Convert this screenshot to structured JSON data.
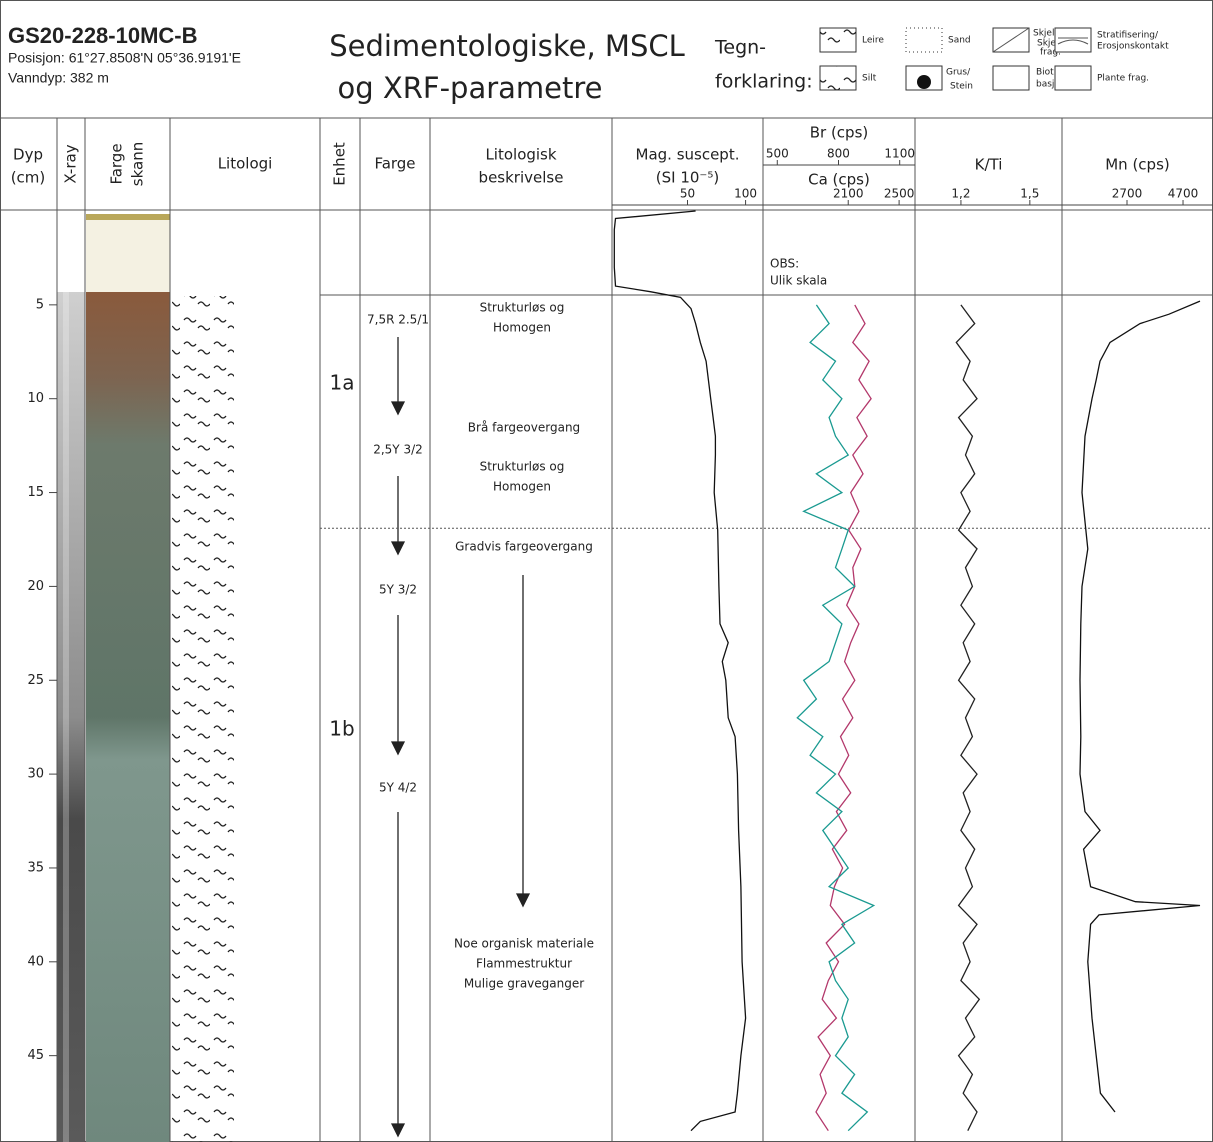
{
  "header": {
    "core": "GS20-228-10MC-B",
    "position": "Posisjon: 61°27.8508'N 05°36.9191'E",
    "water_depth": "Vanndyp: 382 m",
    "title": [
      "Sedimentologiske, MSCL",
      "og XRF-parametre"
    ]
  },
  "legend": {
    "title": [
      "Tegn-",
      "forklaring:"
    ],
    "items": [
      [
        "Leire"
      ],
      [
        "Silt"
      ],
      [
        "Sand"
      ],
      [
        "Grus/",
        "Stein"
      ],
      [
        "Skjell/",
        "Skjell",
        "frag."
      ],
      [
        "Biotur-",
        "basjon"
      ],
      [
        "Stratifisering/",
        "Erosjonskontakt"
      ],
      [
        "Plante frag."
      ]
    ]
  },
  "columns": {
    "depth": [
      "Dyp",
      "(cm)"
    ],
    "xray": "X-ray",
    "scan": [
      "Farge",
      "skann"
    ],
    "lithology": "Litologi",
    "unit": "Enhet",
    "color": "Farge",
    "description": [
      "Litologisk",
      "beskrivelse"
    ]
  },
  "units": [
    "1a",
    "1b"
  ],
  "colors": [
    "7,5R 2.5/1",
    "2,5Y 3/2",
    "5Y 3/2",
    "5Y 4/2"
  ],
  "descriptions": [
    [
      "Strukturløs og",
      "Homogen"
    ],
    [
      "Brå fargeovergang"
    ],
    [
      "Strukturløs og",
      "Homogen"
    ],
    [
      "Gradvis fargeovergang"
    ],
    [
      "Noe organisk materiale",
      "Flammestruktur",
      "Mulige graveganger"
    ]
  ],
  "chart_data": {
    "type": "depth-log",
    "ylim": [
      0,
      49.6
    ],
    "yticks": [
      5,
      10,
      15,
      20,
      25,
      30,
      35,
      40,
      45
    ],
    "unit_boundary": 16.9,
    "tracks": [
      {
        "series": [
          {
            "name": "Mag. suscept.",
            "unit": "(SI 10⁻⁵)",
            "color": "#111111",
            "xlim": [
              -15,
              115
            ],
            "xticks": [
              50,
              100
            ],
            "depth": [
              0,
              0.4,
              1,
              2,
              3,
              4,
              4.3,
              4.6,
              5.2,
              6,
              7,
              8,
              9,
              10,
              11,
              12,
              13,
              15,
              17,
              20,
              22,
              23,
              24,
              25,
              27,
              28,
              30,
              33,
              36,
              40,
              43,
              45,
              47,
              48,
              48.5,
              49
            ],
            "values": [
              57,
              -12,
              -13,
              -13,
              -13,
              -12,
              18,
              44,
              53,
              57,
              61,
              66,
              68,
              70,
              72,
              74,
              74,
              73,
              76,
              77,
              78,
              85,
              80,
              83,
              85,
              91,
              93,
              94,
              96,
              97,
              100,
              96,
              93,
              91,
              61,
              53
            ]
          }
        ]
      },
      {
        "note": [
          "OBS:",
          "Ulik skala"
        ],
        "series": [
          {
            "name": "Br (cps)",
            "color": "#b3386b",
            "xlim": [
              430,
              1175
            ],
            "xticks": [
              500,
              800,
              1100
            ],
            "depth": [
              5,
              6,
              7,
              8,
              9,
              10,
              11,
              12,
              13,
              14,
              15,
              16,
              17,
              18,
              19,
              20,
              21,
              22,
              23,
              24,
              25,
              26,
              27,
              28,
              29,
              30,
              31,
              32,
              33,
              34,
              35,
              36,
              37,
              38,
              39,
              40,
              41,
              42,
              43,
              44,
              45,
              46,
              47,
              48,
              49
            ],
            "values": [
              880,
              930,
              870,
              950,
              900,
              960,
              890,
              940,
              870,
              920,
              860,
              900,
              850,
              910,
              870,
              880,
              840,
              900,
              860,
              830,
              880,
              820,
              870,
              810,
              850,
              800,
              860,
              790,
              840,
              770,
              820,
              780,
              760,
              830,
              740,
              800,
              750,
              720,
              790,
              700,
              760,
              710,
              740,
              690,
              750
            ]
          },
          {
            "name": "Ca (cps)",
            "color": "#1a9a91",
            "xlim": [
              1430,
              2625
            ],
            "xticks": [
              2100,
              2500
            ],
            "depth": [
              5,
              6,
              7,
              8,
              9,
              10,
              11,
              12,
              13,
              14,
              15,
              16,
              17,
              18,
              19,
              20,
              21,
              22,
              23,
              24,
              25,
              26,
              27,
              28,
              29,
              30,
              31,
              32,
              33,
              34,
              35,
              36,
              37,
              38,
              39,
              40,
              41,
              42,
              43,
              44,
              45,
              46,
              47,
              48,
              49
            ],
            "values": [
              1850,
              1950,
              1800,
              2000,
              1900,
              2050,
              1950,
              2000,
              2100,
              1850,
              2050,
              1750,
              2100,
              2050,
              2000,
              2150,
              1900,
              2050,
              2000,
              1950,
              1750,
              1850,
              1700,
              1900,
              1800,
              2000,
              1850,
              2050,
              1900,
              2000,
              2100,
              1950,
              2300,
              2050,
              2150,
              1950,
              2000,
              2100,
              2050,
              2100,
              2000,
              2150,
              2050,
              2250,
              2100
            ]
          }
        ]
      },
      {
        "series": [
          {
            "name": "K/Ti",
            "color": "#222222",
            "xlim": [
              1.0,
              1.64
            ],
            "xticks": [
              {
                "value": 1.2,
                "label": "1,2"
              },
              {
                "value": 1.5,
                "label": "1,5"
              }
            ],
            "depth": [
              5,
              6,
              7,
              8,
              9,
              10,
              11,
              12,
              13,
              14,
              15,
              16,
              17,
              18,
              19,
              20,
              21,
              22,
              23,
              24,
              25,
              26,
              27,
              28,
              29,
              30,
              31,
              32,
              33,
              34,
              35,
              36,
              37,
              38,
              39,
              40,
              41,
              42,
              43,
              44,
              45,
              46,
              47,
              48,
              49
            ],
            "values": [
              1.2,
              1.26,
              1.18,
              1.24,
              1.21,
              1.27,
              1.19,
              1.25,
              1.22,
              1.26,
              1.2,
              1.24,
              1.19,
              1.27,
              1.22,
              1.25,
              1.2,
              1.26,
              1.21,
              1.24,
              1.19,
              1.26,
              1.22,
              1.25,
              1.2,
              1.27,
              1.21,
              1.24,
              1.2,
              1.26,
              1.22,
              1.25,
              1.19,
              1.27,
              1.21,
              1.24,
              1.2,
              1.28,
              1.22,
              1.26,
              1.19,
              1.25,
              1.21,
              1.27,
              1.23
            ]
          }
        ]
      },
      {
        "series": [
          {
            "name": "Mn (cps)",
            "color": "#111111",
            "xlim": [
              380,
              5770
            ],
            "xticks": [
              2700,
              4700
            ],
            "depth": [
              4.8,
              5.5,
              6,
              7,
              8,
              9,
              10,
              12,
              15,
              18,
              20,
              22,
              25,
              28,
              30,
              32,
              33,
              34,
              36,
              36.8,
              37,
              37.5,
              38,
              40,
              43,
              45,
              47,
              48
            ],
            "values": [
              5306,
              4200,
              3164,
              2093,
              1736,
              1600,
              1450,
              1200,
              1093,
              1300,
              1093,
              1050,
              1022,
              1050,
              1022,
              1200,
              1736,
              1150,
              1400,
              3000,
              5306,
              1700,
              1400,
              1300,
              1450,
              1600,
              1750,
              2271
            ]
          }
        ]
      }
    ]
  }
}
